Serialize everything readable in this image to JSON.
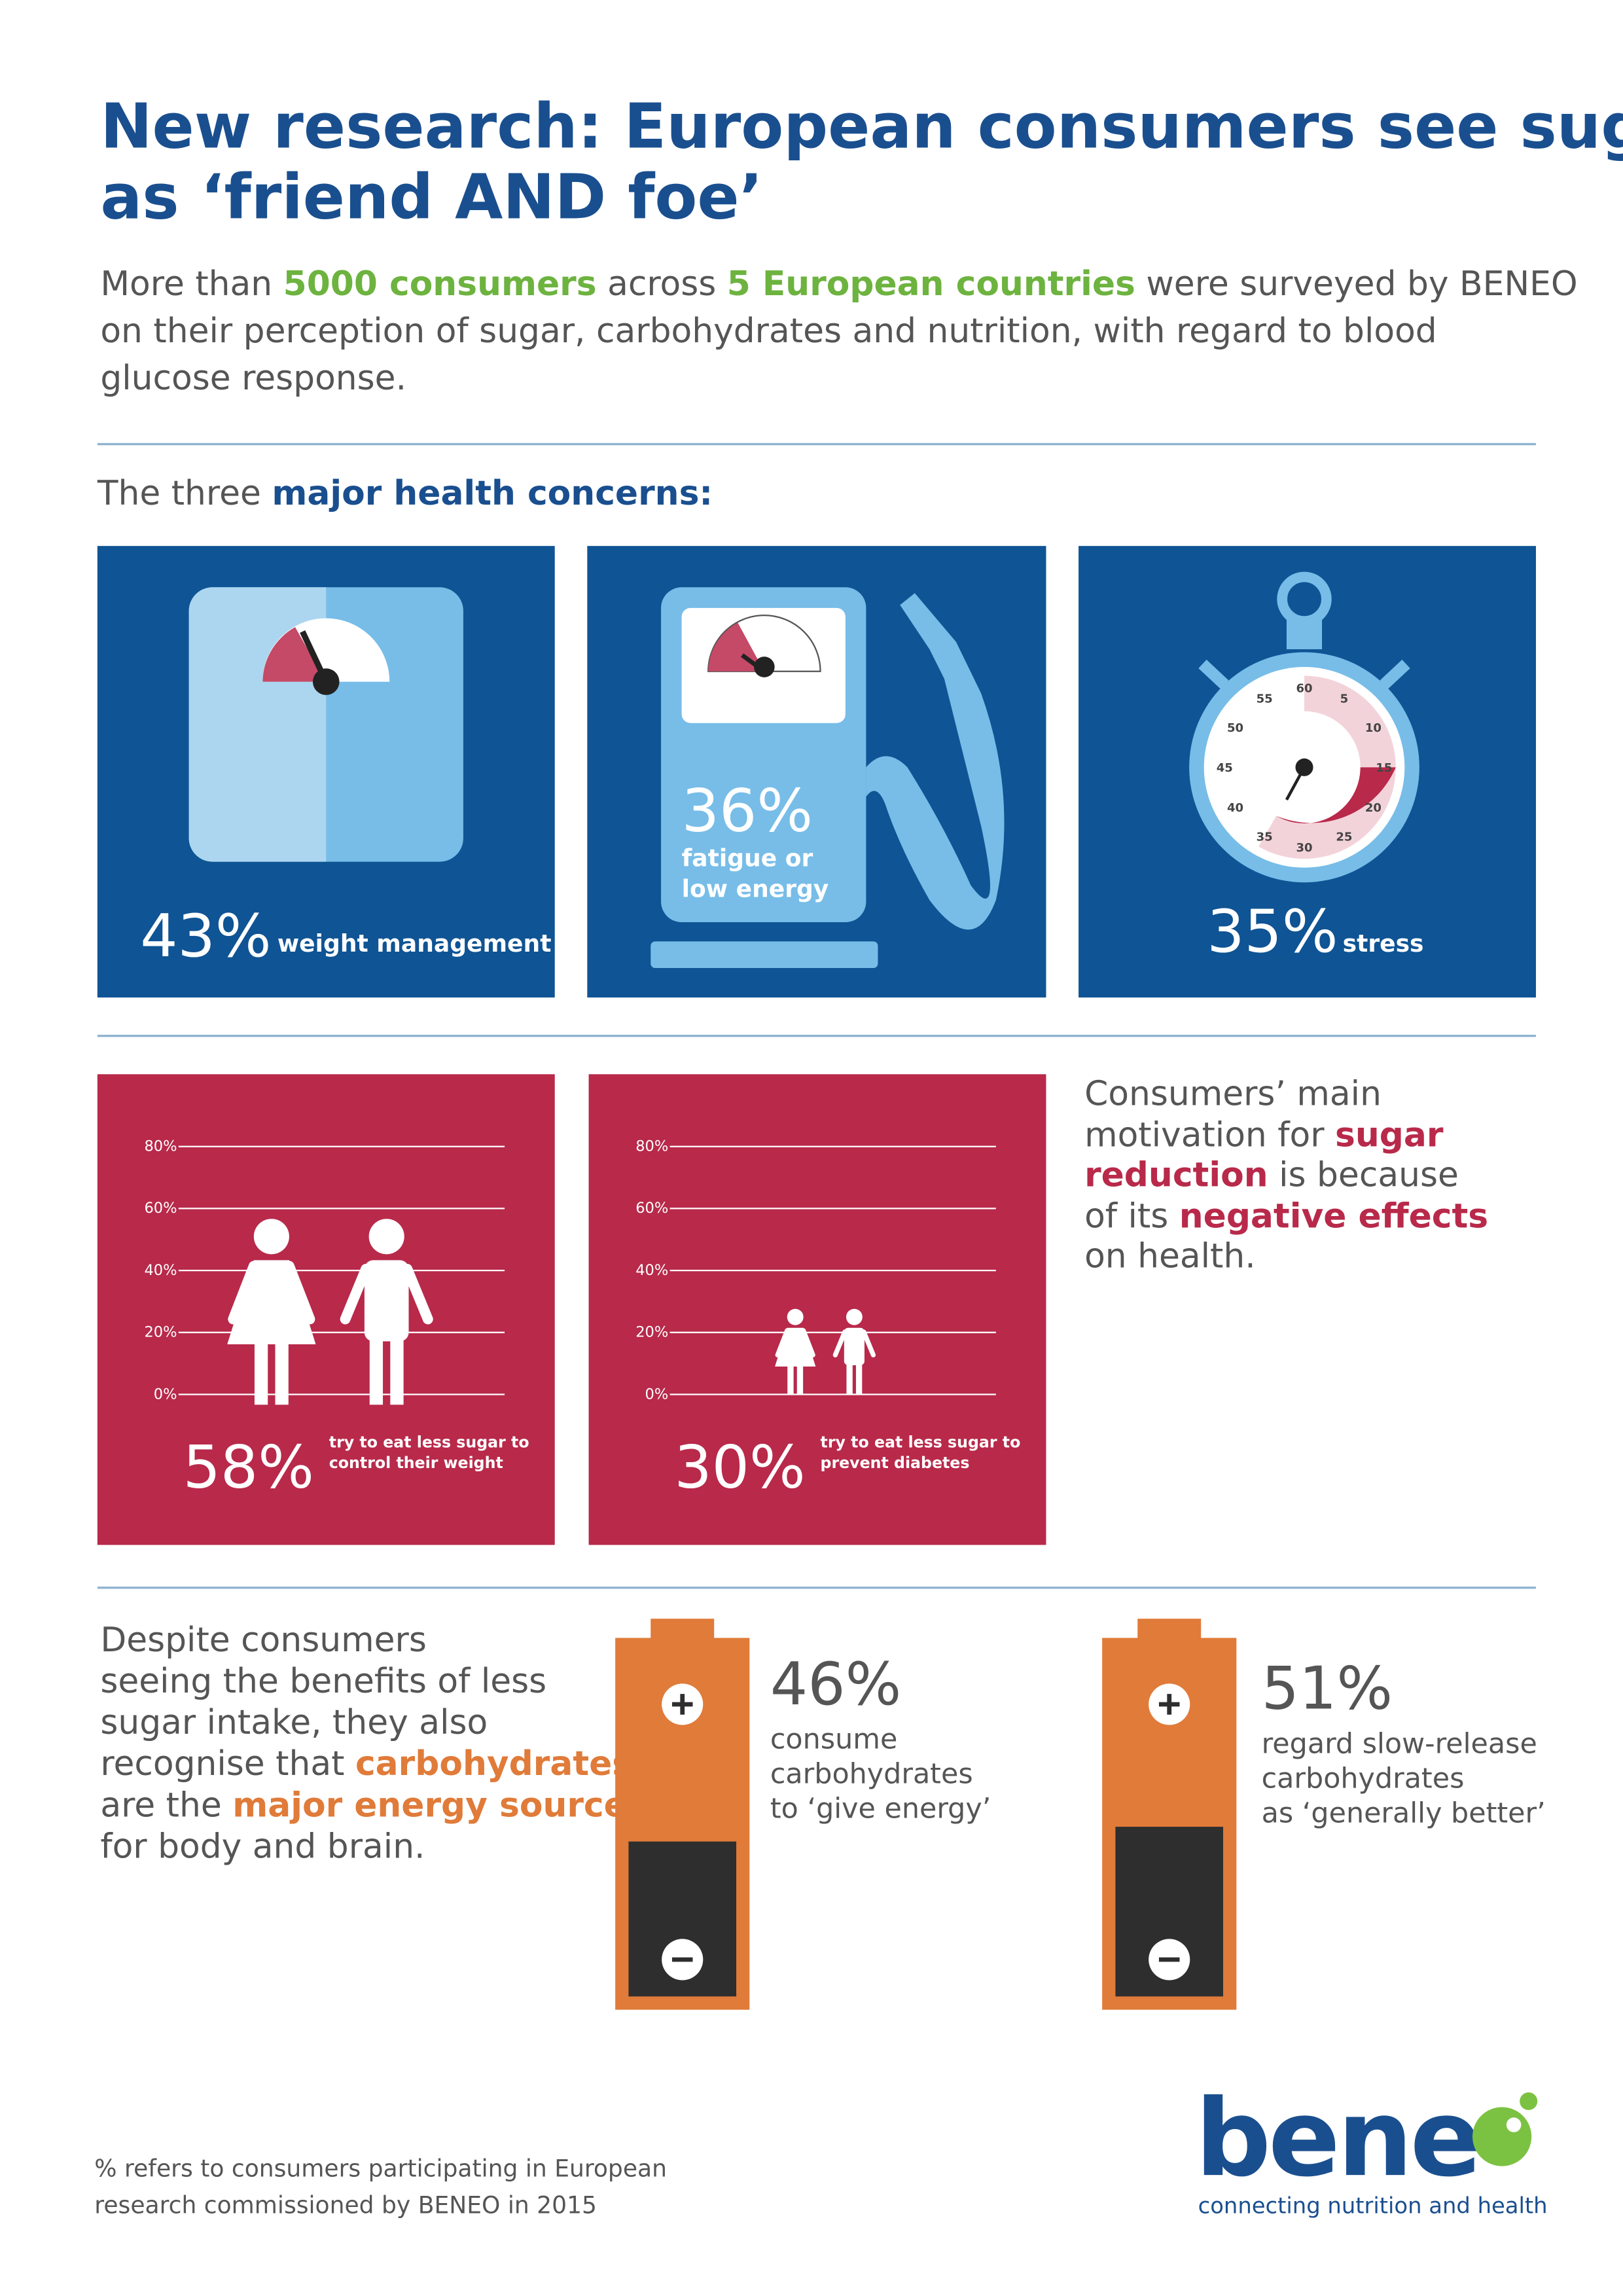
{
  "header": {
    "title_lines": [
      "New research: European consumers see sugar",
      "as ‘friend AND foe’"
    ]
  },
  "intro": {
    "lines": [
      [
        "More than ",
        "5000 consumers",
        " across ",
        "5 European countries",
        " were surveyed by BENEO"
      ],
      [
        "on their perception of sugar, carbohydrates and nutrition, with regard to blood"
      ],
      [
        "glucose response."
      ]
    ]
  },
  "concerns": {
    "heading": [
      "The three ",
      "major health concerns:"
    ],
    "cards": [
      {
        "value": "43%",
        "label": [
          "weight management"
        ]
      },
      {
        "value": "36%",
        "label": [
          "fatigue or",
          "low energy"
        ]
      },
      {
        "value": "35%",
        "label": [
          "stress"
        ]
      }
    ],
    "stopwatch_numbers": [
      "60",
      "5",
      "10",
      "15",
      "20",
      "25",
      "30",
      "35",
      "40",
      "45",
      "50",
      "55"
    ]
  },
  "reduction": {
    "panels": [
      {
        "axis_labels": [
          "80%",
          "60%",
          "40%",
          "20%",
          "0%"
        ],
        "value": "58%",
        "caption": [
          "try to eat less sugar to",
          "control their weight"
        ]
      },
      {
        "axis_labels": [
          "80%",
          "60%",
          "40%",
          "20%",
          "0%"
        ],
        "value": "30%",
        "caption": [
          "try to eat less sugar to",
          "prevent diabetes"
        ]
      }
    ],
    "motivation": [
      [
        "Consumers’ main"
      ],
      [
        "motivation for ",
        "sugar"
      ],
      [
        "reduction",
        " is because"
      ],
      [
        "of its ",
        "negative effects"
      ],
      [
        "on health."
      ]
    ]
  },
  "energy": {
    "text": [
      [
        "Despite consumers"
      ],
      [
        "seeing the benefits of less"
      ],
      [
        "sugar intake, they also"
      ],
      [
        "recognise that ",
        "carbohydrates"
      ],
      [
        "are the ",
        "major energy source"
      ],
      [
        "for body and brain."
      ]
    ],
    "batteries": [
      {
        "value": "46%",
        "caption": [
          "consume",
          "carbohydrates",
          "to ‘give energy’"
        ]
      },
      {
        "value": "51%",
        "caption": [
          "regard slow-release",
          "carbohydrates",
          "as ‘generally better’"
        ]
      }
    ]
  },
  "footer": {
    "note": [
      "% refers to consumers participating in European",
      "research commissioned by BENEO in 2015"
    ],
    "logo": {
      "wordmark": "bene",
      "tagline": "connecting nutrition and health"
    }
  }
}
